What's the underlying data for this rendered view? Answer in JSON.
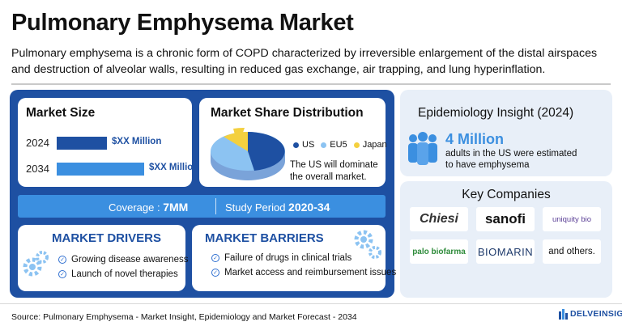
{
  "title": "Pulmonary Emphysema Market",
  "description": "Pulmonary emphysema is a chronic form of COPD characterized by irreversible enlargement of the distal airspaces and destruction of alveolar walls, resulting in reduced gas exchange, air trapping, and lung hyperinflation.",
  "market_size": {
    "heading": "Market Size",
    "rows": [
      {
        "year": "2024",
        "value": "$XX Million"
      },
      {
        "year": "2034",
        "value": "$XX Million"
      }
    ]
  },
  "market_share": {
    "heading": "Market Share Distribution",
    "legend": [
      "US",
      "EU5",
      "Japan"
    ],
    "note": "The US will dominate the overall market."
  },
  "coverage": {
    "label": "Coverage : ",
    "value": "7MM"
  },
  "study_period": {
    "label": "Study Period ",
    "value": "2020-34"
  },
  "drivers": {
    "heading": "MARKET DRIVERS",
    "items": [
      "Growing disease awareness",
      "Launch of novel therapies"
    ]
  },
  "barriers": {
    "heading": "MARKET BARRIERS",
    "items": [
      "Failure of drugs in clinical trials",
      "Market access and reimbursement issues"
    ]
  },
  "epidemiology": {
    "heading": "Epidemiology Insight (2024)",
    "value": "4 Million",
    "text": "adults in the US were estimated to have emphysema"
  },
  "companies": {
    "heading": "Key Companies",
    "logos": [
      "Chiesi",
      "sanofi",
      "uniquity bio",
      "palo biofarma",
      "BIOMARIN"
    ],
    "others": "and others."
  },
  "footer": "Source: Pulmonary Emphysema - Market Insight, Epidemiology and Market Forecast - 2034",
  "brand": "DELVEINSIGHT",
  "colors": {
    "navy": "#1e50a2",
    "sky": "#3b8fe0",
    "light": "#8cc3f2",
    "yellow": "#f4d03f",
    "panel": "#e8eff8"
  }
}
